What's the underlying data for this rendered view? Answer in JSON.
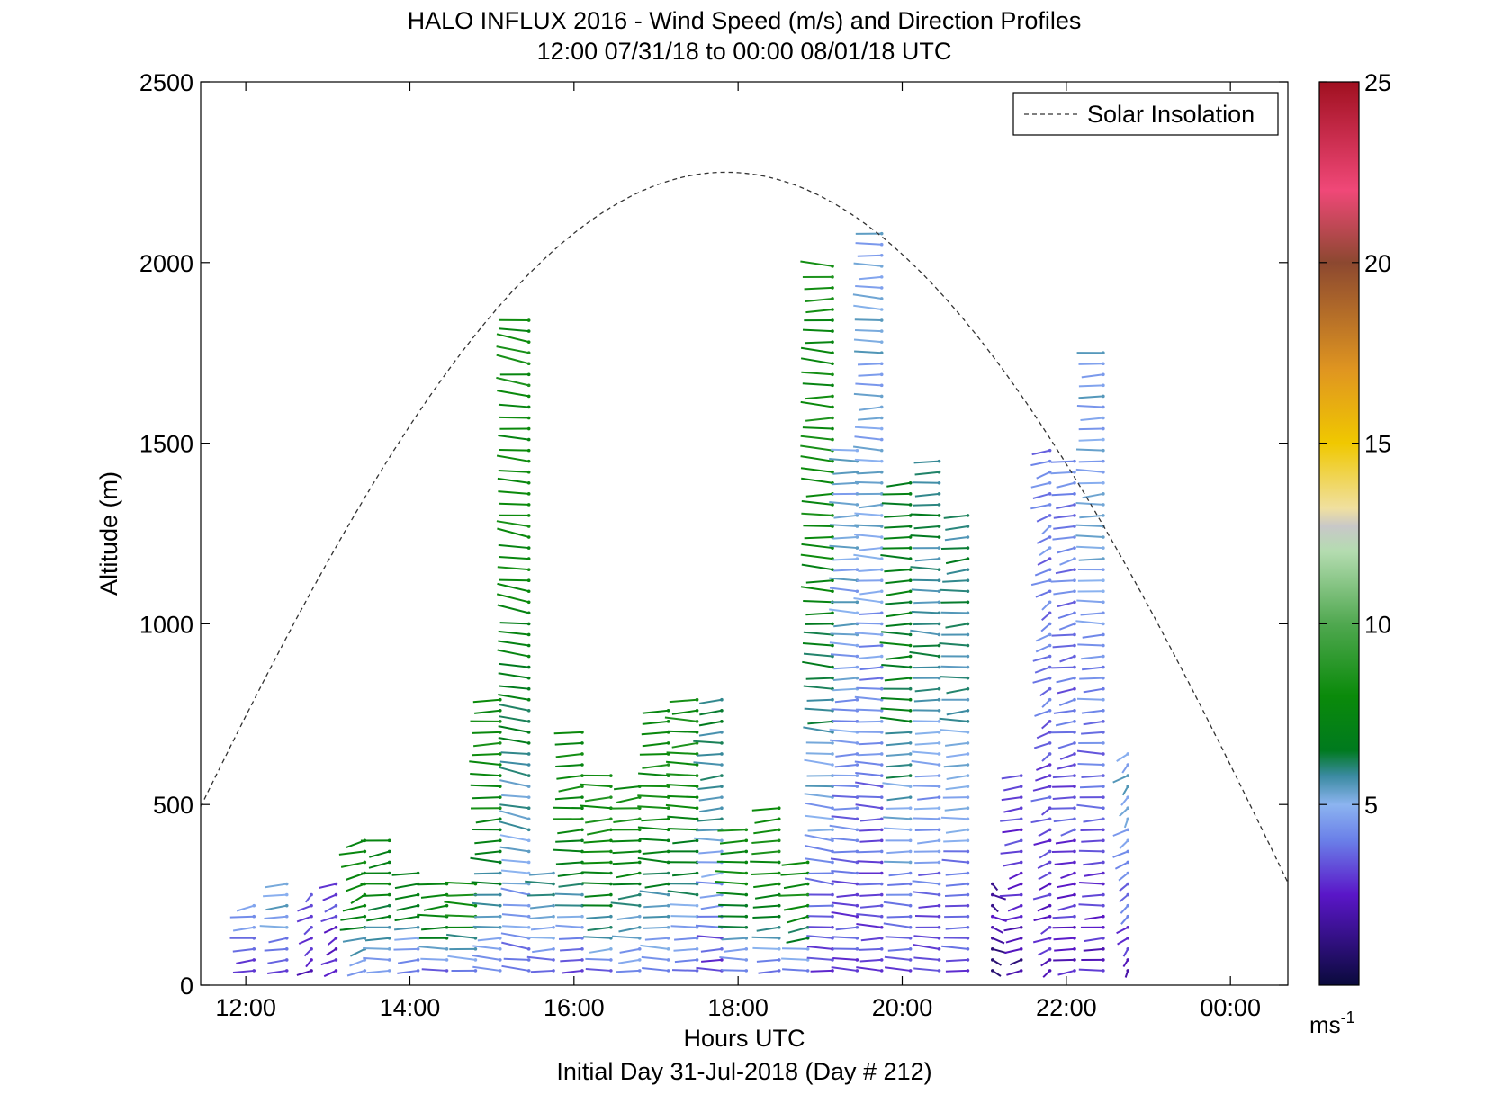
{
  "chart_data": {
    "type": "vector-field",
    "title": "HALO INFLUX 2016 - Wind Speed (m/s) and Direction Profiles",
    "subtitle": "12:00 07/31/18 to 00:00 08/01/18  UTC",
    "xlabel": "Hours UTC",
    "x_sublabel": "Initial Day 31-Jul-2018 (Day # 212)",
    "ylabel": "Altitude (m)",
    "xlim": [
      11.45,
      24.7
    ],
    "ylim": [
      0,
      2500
    ],
    "x_ticks": [
      {
        "value": 12,
        "label": "12:00"
      },
      {
        "value": 14,
        "label": "14:00"
      },
      {
        "value": 16,
        "label": "16:00"
      },
      {
        "value": 18,
        "label": "18:00"
      },
      {
        "value": 20,
        "label": "20:00"
      },
      {
        "value": 22,
        "label": "22:00"
      },
      {
        "value": 24,
        "label": "00:00"
      }
    ],
    "y_ticks": [
      {
        "value": 0,
        "label": "0"
      },
      {
        "value": 500,
        "label": "500"
      },
      {
        "value": 1000,
        "label": "1000"
      },
      {
        "value": 1500,
        "label": "1500"
      },
      {
        "value": 2000,
        "label": "2000"
      },
      {
        "value": 2500,
        "label": "2500"
      }
    ],
    "legend": {
      "label": "Solar Insolation",
      "position": "top-right",
      "style": "dashed"
    },
    "solar_curve": {
      "peak_hour": 17.85,
      "sunrise_hour": 10.4,
      "sunset_hour": 25.3,
      "peak_altitude": 2250
    },
    "colorbar": {
      "range": [
        0,
        25
      ],
      "ticks": [
        {
          "value": 5,
          "label": "5"
        },
        {
          "value": 10,
          "label": "10"
        },
        {
          "value": 15,
          "label": "15"
        },
        {
          "value": 20,
          "label": "20"
        },
        {
          "value": 25,
          "label": "25"
        }
      ],
      "unit_label": "ms",
      "unit_exponent": "-1",
      "stops": [
        {
          "v": 0,
          "c": "#0a0a3c"
        },
        {
          "v": 2.5,
          "c": "#5a16c8"
        },
        {
          "v": 4,
          "c": "#6a7fe8"
        },
        {
          "v": 5,
          "c": "#8cb4f0"
        },
        {
          "v": 5.8,
          "c": "#3a8aa0"
        },
        {
          "v": 6.5,
          "c": "#007a1e"
        },
        {
          "v": 8,
          "c": "#0a8a0a"
        },
        {
          "v": 10,
          "c": "#50a850"
        },
        {
          "v": 12,
          "c": "#b4dcb0"
        },
        {
          "v": 12.7,
          "c": "#c8c8c8"
        },
        {
          "v": 13.2,
          "c": "#f0e0a0"
        },
        {
          "v": 15,
          "c": "#f0c800"
        },
        {
          "v": 17,
          "c": "#e09620"
        },
        {
          "v": 20,
          "c": "#8c4830"
        },
        {
          "v": 22,
          "c": "#f04878"
        },
        {
          "v": 25,
          "c": "#a01020"
        }
      ]
    },
    "profiles": [
      {
        "t": 12.1,
        "ztop": 230,
        "dir": 230,
        "s": [
          3,
          4.5
        ]
      },
      {
        "t": 12.5,
        "ztop": 300,
        "dir": 235,
        "s": [
          3,
          5
        ]
      },
      {
        "t": 12.8,
        "ztop": 250,
        "dir": 200,
        "s": [
          2.5,
          3.5
        ]
      },
      {
        "t": 13.1,
        "ztop": 290,
        "dir": 210,
        "s": [
          2.5,
          3
        ]
      },
      {
        "t": 13.45,
        "ztop": 410,
        "dir": 220,
        "s": [
          4.5,
          8
        ]
      },
      {
        "t": 13.75,
        "ztop": 420,
        "dir": 235,
        "s": [
          4.5,
          7.5
        ]
      },
      {
        "t": 14.1,
        "ztop": 320,
        "dir": 240,
        "s": [
          3.5,
          7
        ]
      },
      {
        "t": 14.45,
        "ztop": 290,
        "dir": 240,
        "s": [
          4,
          8
        ]
      },
      {
        "t": 14.8,
        "ztop": 280,
        "dir": 245,
        "s": [
          4,
          8
        ]
      },
      {
        "t": 15.1,
        "ztop": 800,
        "dir": 245,
        "s": [
          4,
          8
        ]
      },
      {
        "t": 15.45,
        "ztop": 1850,
        "dir": 260,
        "s": [
          4,
          8
        ]
      },
      {
        "t": 15.75,
        "ztop": 320,
        "dir": 240,
        "s": [
          3.5,
          6
        ]
      },
      {
        "t": 16.1,
        "ztop": 700,
        "dir": 240,
        "s": [
          3.5,
          8
        ]
      },
      {
        "t": 16.45,
        "ztop": 600,
        "dir": 240,
        "s": [
          4,
          8.5
        ]
      },
      {
        "t": 16.8,
        "ztop": 550,
        "dir": 240,
        "s": [
          4,
          8
        ]
      },
      {
        "t": 17.15,
        "ztop": 780,
        "dir": 245,
        "s": [
          4,
          8
        ]
      },
      {
        "t": 17.5,
        "ztop": 800,
        "dir": 245,
        "s": [
          4,
          8
        ]
      },
      {
        "t": 17.8,
        "ztop": 800,
        "dir": 240,
        "s": [
          3,
          6
        ]
      },
      {
        "t": 18.1,
        "ztop": 450,
        "dir": 240,
        "s": [
          4,
          8
        ]
      },
      {
        "t": 18.5,
        "ztop": 500,
        "dir": 240,
        "s": [
          4,
          8
        ]
      },
      {
        "t": 18.85,
        "ztop": 360,
        "dir": 235,
        "s": [
          4,
          8
        ]
      },
      {
        "t": 19.15,
        "ztop": 2000,
        "dir": 250,
        "s": [
          3,
          8
        ]
      },
      {
        "t": 19.45,
        "ztop": 1500,
        "dir": 245,
        "s": [
          3,
          5
        ]
      },
      {
        "t": 19.75,
        "ztop": 2100,
        "dir": 245,
        "s": [
          3,
          5
        ]
      },
      {
        "t": 20.1,
        "ztop": 1400,
        "dir": 245,
        "s": [
          3.5,
          7
        ]
      },
      {
        "t": 20.45,
        "ztop": 1450,
        "dir": 245,
        "s": [
          3,
          6
        ]
      },
      {
        "t": 20.8,
        "ztop": 1300,
        "dir": 240,
        "s": [
          3,
          6
        ]
      },
      {
        "t": 21.1,
        "ztop": 300,
        "dir": 160,
        "s": [
          1,
          2
        ]
      },
      {
        "t": 21.45,
        "ztop": 600,
        "dir": 220,
        "s": [
          1.5,
          3
        ]
      },
      {
        "t": 21.8,
        "ztop": 1500,
        "dir": 210,
        "s": [
          2.5,
          4
        ]
      },
      {
        "t": 22.1,
        "ztop": 1450,
        "dir": 225,
        "s": [
          2.5,
          4
        ]
      },
      {
        "t": 22.45,
        "ztop": 1750,
        "dir": 240,
        "s": [
          2.5,
          5
        ]
      },
      {
        "t": 22.75,
        "ztop": 650,
        "dir": 200,
        "s": [
          2.5,
          5
        ]
      }
    ]
  }
}
